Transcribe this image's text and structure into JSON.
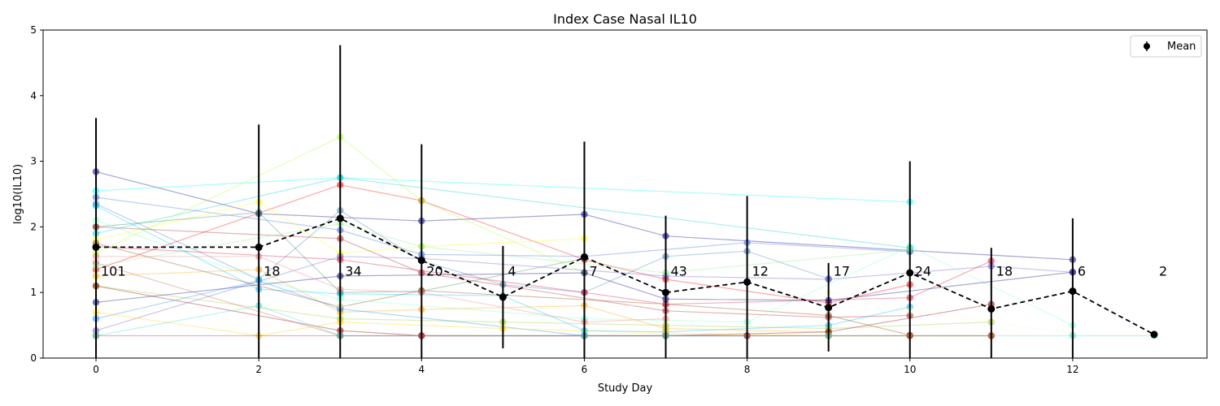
{
  "chart_data": {
    "type": "line",
    "title": "Index Case Nasal IL10",
    "xlabel": "Study Day",
    "ylabel": "log10(IL10)",
    "xlim": [
      -0.65,
      13.65
    ],
    "ylim": [
      0,
      5
    ],
    "x_ticks": [
      0,
      2,
      4,
      6,
      8,
      10,
      12
    ],
    "y_ticks": [
      0,
      1,
      2,
      3,
      4,
      5
    ],
    "legend": {
      "entries": [
        "Mean"
      ],
      "placement": "top-right"
    },
    "mean_series": {
      "name": "Mean",
      "color": "#000000",
      "x": [
        0,
        2,
        3,
        4,
        5,
        6,
        7,
        8,
        9,
        10,
        11,
        12,
        13
      ],
      "y": [
        1.69,
        1.69,
        2.13,
        1.49,
        0.93,
        1.54,
        1.0,
        1.16,
        0.77,
        1.3,
        0.75,
        1.02,
        0.36
      ],
      "err_low": [
        0,
        0,
        0,
        0,
        0.15,
        0,
        0,
        0,
        0.1,
        0,
        0,
        0,
        0.36
      ],
      "err_high": [
        3.66,
        3.56,
        4.77,
        3.26,
        1.71,
        3.3,
        2.17,
        2.47,
        1.45,
        3.0,
        1.68,
        2.13,
        0.36
      ]
    },
    "counts": [
      {
        "x": 0,
        "label": "101"
      },
      {
        "x": 2,
        "label": "18"
      },
      {
        "x": 3,
        "label": "34"
      },
      {
        "x": 4,
        "label": "20"
      },
      {
        "x": 5,
        "label": "4"
      },
      {
        "x": 6,
        "label": "7"
      },
      {
        "x": 7,
        "label": "43"
      },
      {
        "x": 8,
        "label": "12"
      },
      {
        "x": 9,
        "label": "17"
      },
      {
        "x": 10,
        "label": "24"
      },
      {
        "x": 11,
        "label": "18"
      },
      {
        "x": 12,
        "label": "6"
      },
      {
        "x": 13,
        "label": "2"
      }
    ],
    "count_label_y": 1.33,
    "subject_series": [
      {
        "color": "#00008b",
        "points": [
          [
            0,
            2.84
          ],
          [
            2,
            2.2
          ],
          [
            4,
            2.09
          ],
          [
            6,
            2.19
          ],
          [
            7,
            1.86
          ],
          [
            10,
            1.64
          ],
          [
            12,
            1.5
          ]
        ]
      },
      {
        "color": "#00ffff",
        "points": [
          [
            0,
            2.55
          ],
          [
            3,
            2.75
          ],
          [
            10,
            2.38
          ]
        ]
      },
      {
        "color": "#4169e1",
        "points": [
          [
            0,
            2.45
          ],
          [
            3,
            1.95
          ],
          [
            4,
            1.58
          ],
          [
            6,
            1.55
          ],
          [
            8,
            1.76
          ],
          [
            10,
            1.62
          ]
        ]
      },
      {
        "color": "#ff0000",
        "points": [
          [
            0,
            1.35
          ],
          [
            3,
            2.64
          ],
          [
            4,
            2.4
          ],
          [
            6,
            1.5
          ],
          [
            7,
            1.2
          ],
          [
            9,
            0.84
          ],
          [
            10,
            1.12
          ]
        ]
      },
      {
        "color": "#adff2f",
        "points": [
          [
            0,
            1.6
          ],
          [
            3,
            3.37
          ],
          [
            4,
            2.4
          ],
          [
            6,
            1.3
          ]
        ]
      },
      {
        "color": "#ffff00",
        "points": [
          [
            0,
            1.8
          ],
          [
            2,
            2.38
          ],
          [
            3,
            1.6
          ],
          [
            4,
            1.7
          ],
          [
            6,
            1.82
          ]
        ]
      },
      {
        "color": "#4682b4",
        "points": [
          [
            0,
            2.35
          ],
          [
            2,
            1.2
          ],
          [
            3,
            2.25
          ],
          [
            4,
            1.48
          ],
          [
            5,
            1.12
          ],
          [
            6,
            1.0
          ],
          [
            7,
            1.55
          ],
          [
            8,
            1.63
          ],
          [
            9,
            1.21
          ]
        ]
      },
      {
        "color": "#2e8b57",
        "points": [
          [
            0,
            2.0
          ],
          [
            2,
            2.22
          ],
          [
            3,
            1.0
          ],
          [
            4,
            1.02
          ],
          [
            6,
            1.52
          ]
        ]
      },
      {
        "color": "#b22222",
        "points": [
          [
            0,
            2.0
          ],
          [
            3,
            1.82
          ],
          [
            4,
            1.3
          ],
          [
            7,
            0.72
          ],
          [
            9,
            0.62
          ],
          [
            10,
            0.65
          ]
        ]
      },
      {
        "color": "#00bfff",
        "points": [
          [
            0,
            2.32
          ],
          [
            2,
            1.05
          ],
          [
            3,
            0.98
          ],
          [
            5,
            0.95
          ],
          [
            6,
            0.42
          ],
          [
            7,
            0.4
          ],
          [
            9,
            0.5
          ],
          [
            10,
            0.78
          ]
        ]
      },
      {
        "color": "#6a5acd",
        "points": [
          [
            0,
            0.42
          ],
          [
            3,
            1.55
          ],
          [
            4,
            1.52
          ],
          [
            7,
            1.25
          ],
          [
            9,
            1.2
          ],
          [
            11,
            1.4
          ],
          [
            12,
            1.31
          ]
        ]
      },
      {
        "color": "#8b4513",
        "points": [
          [
            0,
            1.75
          ],
          [
            3,
            0.78
          ],
          [
            4,
            1.03
          ],
          [
            7,
            0.82
          ],
          [
            9,
            0.65
          ],
          [
            10,
            0.35
          ]
        ]
      },
      {
        "color": "#dc143c",
        "points": [
          [
            0,
            1.7
          ],
          [
            3,
            1.5
          ],
          [
            6,
            1.0
          ],
          [
            7,
            0.82
          ],
          [
            10,
            0.92
          ],
          [
            11,
            1.48
          ]
        ]
      },
      {
        "color": "#ffa500",
        "points": [
          [
            0,
            1.25
          ],
          [
            2,
            1.35
          ],
          [
            3,
            0.7
          ],
          [
            4,
            0.74
          ],
          [
            6,
            0.8
          ],
          [
            7,
            0.45
          ],
          [
            9,
            0.4
          ]
        ]
      },
      {
        "color": "#7fffd4",
        "points": [
          [
            0,
            2.1
          ],
          [
            2,
            1.2
          ],
          [
            3,
            0.9
          ],
          [
            6,
            0.6
          ],
          [
            8,
            0.55
          ],
          [
            10,
            1.7
          ],
          [
            12,
            0.5
          ]
        ]
      },
      {
        "color": "#9acd32",
        "points": [
          [
            0,
            1.1
          ],
          [
            3,
            0.6
          ],
          [
            5,
            0.55
          ],
          [
            7,
            0.5
          ],
          [
            9,
            0.45
          ],
          [
            11,
            0.55
          ]
        ]
      },
      {
        "color": "#000080",
        "points": [
          [
            0,
            0.85
          ],
          [
            3,
            1.25
          ],
          [
            6,
            1.3
          ],
          [
            7,
            0.9
          ],
          [
            9,
            0.88
          ],
          [
            12,
            1.31
          ]
        ]
      },
      {
        "color": "#8b0000",
        "points": [
          [
            0,
            1.1
          ],
          [
            3,
            0.42
          ],
          [
            4,
            0.34
          ],
          [
            7,
            0.34
          ],
          [
            9,
            0.4
          ],
          [
            11,
            0.82
          ]
        ]
      },
      {
        "color": "#1e90ff",
        "points": [
          [
            0,
            0.6
          ],
          [
            2,
            1.18
          ],
          [
            3,
            0.75
          ],
          [
            6,
            0.34
          ],
          [
            8,
            0.34
          ]
        ]
      },
      {
        "color": "#ffd700",
        "points": [
          [
            0,
            0.7
          ],
          [
            2,
            0.34
          ],
          [
            3,
            0.55
          ],
          [
            5,
            0.45
          ],
          [
            7,
            0.38
          ],
          [
            9,
            0.34
          ],
          [
            10,
            0.34
          ],
          [
            11,
            0.34
          ]
        ]
      },
      {
        "color": "#cd5c5c",
        "points": [
          [
            0,
            1.45
          ],
          [
            3,
            0.34
          ],
          [
            4,
            0.34
          ],
          [
            7,
            0.34
          ],
          [
            8,
            0.34
          ],
          [
            10,
            0.34
          ],
          [
            11,
            0.34
          ]
        ]
      },
      {
        "color": "#a52a2a",
        "points": [
          [
            0,
            0.34
          ],
          [
            3,
            0.34
          ],
          [
            4,
            0.34
          ],
          [
            6,
            0.34
          ],
          [
            7,
            0.34
          ],
          [
            8,
            0.34
          ],
          [
            9,
            0.34
          ],
          [
            10,
            0.34
          ],
          [
            11,
            0.34
          ]
        ]
      },
      {
        "color": "#00ced1",
        "points": [
          [
            0,
            1.9
          ],
          [
            3,
            2.75
          ],
          [
            10,
            1.68
          ]
        ]
      },
      {
        "color": "#90ee90",
        "points": [
          [
            0,
            1.4
          ],
          [
            3,
            2.05
          ],
          [
            4,
            1.7
          ],
          [
            7,
            1.3
          ],
          [
            10,
            1.65
          ]
        ]
      },
      {
        "color": "#f08080",
        "points": [
          [
            0,
            1.55
          ],
          [
            2,
            1.55
          ],
          [
            3,
            1.05
          ],
          [
            4,
            1.0
          ],
          [
            6,
            0.55
          ],
          [
            7,
            0.6
          ]
        ]
      },
      {
        "color": "#fafad2",
        "points": [
          [
            0,
            0.75
          ],
          [
            3,
            0.8
          ],
          [
            6,
            0.75
          ],
          [
            9,
            1.0
          ],
          [
            10,
            0.72
          ],
          [
            12,
            0.38
          ],
          [
            13,
            0.36
          ]
        ]
      },
      {
        "color": "#40e0d0",
        "points": [
          [
            0,
            0.34
          ],
          [
            2,
            0.8
          ],
          [
            3,
            0.34
          ],
          [
            6,
            0.34
          ],
          [
            7,
            0.34
          ],
          [
            9,
            0.34
          ],
          [
            12,
            0.34
          ],
          [
            13,
            0.34
          ]
        ]
      }
    ]
  }
}
